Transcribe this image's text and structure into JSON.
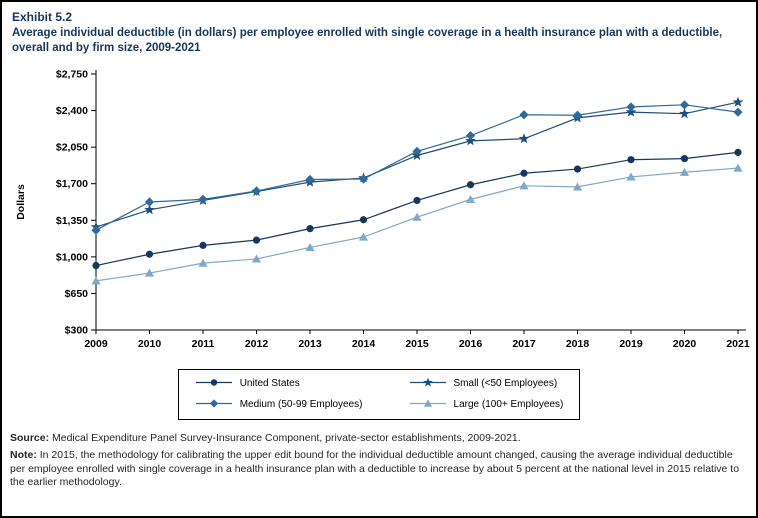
{
  "title": {
    "exhibit": "Exhibit 5.2",
    "text": "Average individual deductible (in dollars) per employee enrolled with single coverage in a health insurance plan with a deductible, overall and by firm size, 2009-2021"
  },
  "chart_data": {
    "type": "line",
    "title": "Average individual deductible (in dollars) per employee enrolled with single coverage in a health insurance plan with a deductible, overall and by firm size, 2009-2021",
    "xlabel": "",
    "ylabel": "Dollars",
    "ylim": [
      300,
      2750
    ],
    "yticks": [
      300,
      650,
      1000,
      1350,
      1700,
      2050,
      2400,
      2750
    ],
    "grid": false,
    "legend_position": "bottom",
    "x": [
      2009,
      2010,
      2011,
      2012,
      2013,
      2014,
      2015,
      2016,
      2017,
      2018,
      2019,
      2020,
      2021
    ],
    "series": [
      {
        "name": "United States",
        "marker": "circle",
        "color": "#17375e",
        "values": [
          917,
          1025,
          1110,
          1160,
          1270,
          1355,
          1540,
          1690,
          1800,
          1840,
          1930,
          1940,
          2000
        ]
      },
      {
        "name": "Small (<50 Employees)",
        "marker": "star",
        "color": "#1f4e79",
        "values": [
          1285,
          1450,
          1540,
          1625,
          1715,
          1755,
          1970,
          2110,
          2130,
          2330,
          2385,
          2370,
          2480
        ]
      },
      {
        "name": "Medium (50-99 Employees)",
        "marker": "diamond",
        "color": "#2f6a9e",
        "values": [
          1255,
          1525,
          1550,
          1630,
          1740,
          1745,
          2010,
          2160,
          2360,
          2355,
          2435,
          2455,
          2385
        ]
      },
      {
        "name": "Large (100+ Employees)",
        "marker": "triangle",
        "color": "#7fa8c9",
        "values": [
          770,
          845,
          940,
          980,
          1090,
          1190,
          1380,
          1550,
          1680,
          1670,
          1765,
          1810,
          1850
        ]
      }
    ]
  },
  "footer": {
    "source_label": "Source:",
    "source_text": " Medical Expenditure Panel Survey-Insurance Component, private-sector establishments, 2009-2021.",
    "note_label": "Note:",
    "note_text": " In 2015, the methodology for calibrating the upper edit bound for the individual deductible amount changed, causing the average individual deductible per employee enrolled with single coverage in a health insurance plan with a deductible to increase by about 5 percent at the national level in 2015 relative to the earlier methodology."
  }
}
